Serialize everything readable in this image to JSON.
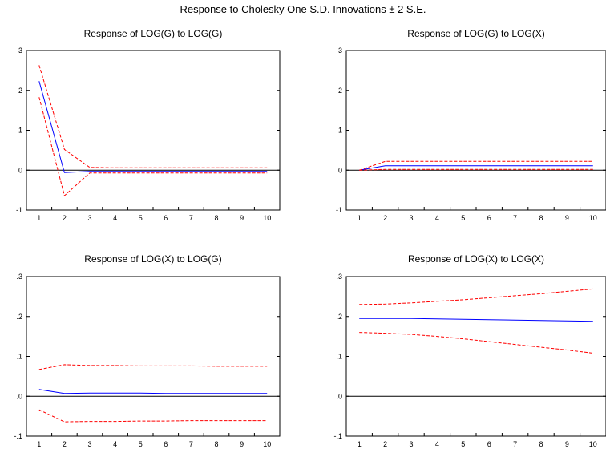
{
  "title": "Response to Cholesky One S.D. Innovations ± 2 S.E.",
  "chart_data": [
    {
      "type": "line",
      "title": "Response of LOG(G) to LOG(G)",
      "x": [
        1,
        2,
        3,
        4,
        5,
        6,
        7,
        8,
        9,
        10
      ],
      "ylim": [
        -1,
        3
      ],
      "yticks": [
        -1,
        0,
        1,
        2,
        3
      ],
      "ytick_labels": [
        "-1",
        "0",
        "1",
        "2",
        "3"
      ],
      "xtick_labels": [
        "1",
        "2",
        "3",
        "4",
        "5",
        "6",
        "7",
        "8",
        "9",
        "10"
      ],
      "zero_line": true,
      "series": [
        {
          "role": "response",
          "color": "#0000ff",
          "style": "solid",
          "values": [
            2.23,
            -0.06,
            -0.03,
            -0.03,
            -0.03,
            -0.03,
            -0.03,
            -0.03,
            -0.03,
            -0.03
          ]
        },
        {
          "role": "upper",
          "color": "#ff0000",
          "style": "dashed",
          "values": [
            2.63,
            0.52,
            0.07,
            0.06,
            0.06,
            0.06,
            0.06,
            0.06,
            0.06,
            0.06
          ]
        },
        {
          "role": "lower",
          "color": "#ff0000",
          "style": "dashed",
          "values": [
            1.83,
            -0.64,
            -0.07,
            -0.07,
            -0.07,
            -0.07,
            -0.07,
            -0.07,
            -0.07,
            -0.07
          ]
        }
      ]
    },
    {
      "type": "line",
      "title": "Response of LOG(G) to LOG(X)",
      "x": [
        1,
        2,
        3,
        4,
        5,
        6,
        7,
        8,
        9,
        10
      ],
      "ylim": [
        -1,
        3
      ],
      "yticks": [
        -1,
        0,
        1,
        2,
        3
      ],
      "ytick_labels": [
        "-1",
        "0",
        "1",
        "2",
        "3"
      ],
      "xtick_labels": [
        "1",
        "2",
        "3",
        "4",
        "5",
        "6",
        "7",
        "8",
        "9",
        "10"
      ],
      "zero_line": true,
      "series": [
        {
          "role": "response",
          "color": "#0000ff",
          "style": "solid",
          "values": [
            0.0,
            0.11,
            0.11,
            0.11,
            0.11,
            0.11,
            0.11,
            0.11,
            0.11,
            0.11
          ]
        },
        {
          "role": "upper",
          "color": "#ff0000",
          "style": "dashed",
          "values": [
            0.0,
            0.22,
            0.22,
            0.22,
            0.22,
            0.22,
            0.22,
            0.22,
            0.22,
            0.22
          ]
        },
        {
          "role": "lower",
          "color": "#ff0000",
          "style": "dashed",
          "values": [
            0.0,
            0.02,
            0.02,
            0.02,
            0.02,
            0.02,
            0.02,
            0.02,
            0.02,
            0.02
          ]
        }
      ]
    },
    {
      "type": "line",
      "title": "Response of LOG(X) to LOG(G)",
      "x": [
        1,
        2,
        3,
        4,
        5,
        6,
        7,
        8,
        9,
        10
      ],
      "ylim": [
        -0.1,
        0.3
      ],
      "yticks": [
        -0.1,
        0.0,
        0.1,
        0.2,
        0.3
      ],
      "ytick_labels": [
        "-.1",
        ".0",
        ".1",
        ".2",
        ".3"
      ],
      "xtick_labels": [
        "1",
        "2",
        "3",
        "4",
        "5",
        "6",
        "7",
        "8",
        "9",
        "10"
      ],
      "zero_line": true,
      "series": [
        {
          "role": "response",
          "color": "#0000ff",
          "style": "solid",
          "values": [
            0.017,
            0.007,
            0.008,
            0.008,
            0.008,
            0.007,
            0.007,
            0.007,
            0.007,
            0.007
          ]
        },
        {
          "role": "upper",
          "color": "#ff0000",
          "style": "dashed",
          "values": [
            0.067,
            0.079,
            0.077,
            0.077,
            0.076,
            0.076,
            0.076,
            0.075,
            0.075,
            0.075
          ]
        },
        {
          "role": "lower",
          "color": "#ff0000",
          "style": "dashed",
          "values": [
            -0.034,
            -0.064,
            -0.063,
            -0.063,
            -0.062,
            -0.062,
            -0.061,
            -0.061,
            -0.061,
            -0.061
          ]
        }
      ]
    },
    {
      "type": "line",
      "title": "Response of LOG(X) to LOG(X)",
      "x": [
        1,
        2,
        3,
        4,
        5,
        6,
        7,
        8,
        9,
        10
      ],
      "ylim": [
        -0.1,
        0.3
      ],
      "yticks": [
        -0.1,
        0.0,
        0.1,
        0.2,
        0.3
      ],
      "ytick_labels": [
        "-.1",
        ".0",
        ".1",
        ".2",
        ".3"
      ],
      "xtick_labels": [
        "1",
        "2",
        "3",
        "4",
        "5",
        "6",
        "7",
        "8",
        "9",
        "10"
      ],
      "zero_line": true,
      "series": [
        {
          "role": "response",
          "color": "#0000ff",
          "style": "solid",
          "values": [
            0.195,
            0.195,
            0.195,
            0.194,
            0.193,
            0.192,
            0.191,
            0.19,
            0.189,
            0.188
          ]
        },
        {
          "role": "upper",
          "color": "#ff0000",
          "style": "dashed",
          "values": [
            0.23,
            0.231,
            0.234,
            0.238,
            0.242,
            0.247,
            0.252,
            0.257,
            0.263,
            0.269
          ]
        },
        {
          "role": "lower",
          "color": "#ff0000",
          "style": "dashed",
          "values": [
            0.16,
            0.158,
            0.155,
            0.15,
            0.144,
            0.137,
            0.13,
            0.123,
            0.116,
            0.108
          ]
        }
      ]
    }
  ]
}
